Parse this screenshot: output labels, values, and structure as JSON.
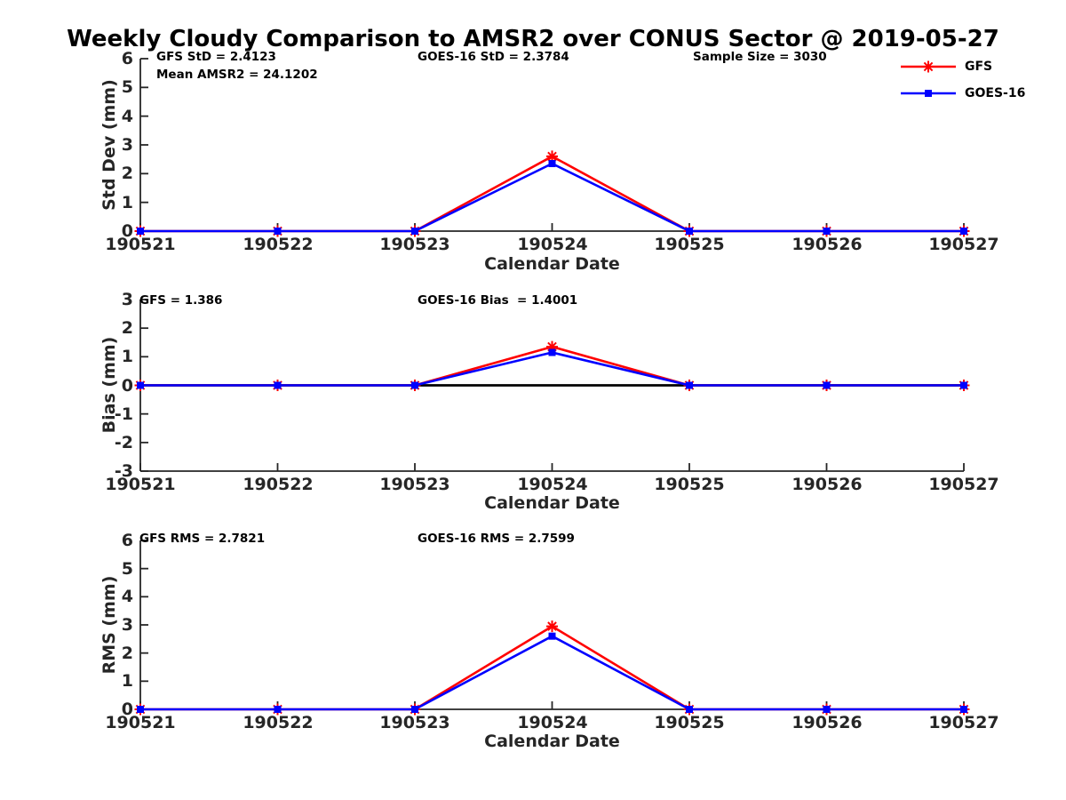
{
  "title": "Weekly Cloudy Comparison to AMSR2 over CONUS Sector @ 2019-05-27",
  "colors": {
    "gfs": "#ff0000",
    "goes16": "#0000ff",
    "axis": "#262626",
    "zero_line": "#000000"
  },
  "legend": {
    "entries": [
      {
        "label": "GFS",
        "color": "#ff0000",
        "marker": "asterisk"
      },
      {
        "label": "GOES-16",
        "color": "#0000ff",
        "marker": "square"
      }
    ]
  },
  "chart_data": [
    {
      "type": "line",
      "panel": "std-dev",
      "ylabel": "Std Dev (mm)",
      "xlabel": "Calendar Date",
      "categories": [
        "190521",
        "190522",
        "190523",
        "190524",
        "190525",
        "190526",
        "190527"
      ],
      "ylim": [
        0,
        6
      ],
      "yticks": [
        0,
        1,
        2,
        3,
        4,
        5,
        6
      ],
      "zero_line": false,
      "grid": false,
      "series": [
        {
          "name": "GFS",
          "color": "#ff0000",
          "marker": "asterisk",
          "values": [
            0,
            0,
            0,
            2.6,
            0,
            0,
            0
          ]
        },
        {
          "name": "GOES-16",
          "color": "#0000ff",
          "marker": "square",
          "values": [
            0,
            0,
            0,
            2.35,
            0,
            0,
            0
          ]
        }
      ],
      "annotations": [
        "GFS StD = 2.4123",
        "Mean AMSR2 = 24.1202",
        "GOES-16 StD = 2.3784",
        "Sample Size = 3030"
      ]
    },
    {
      "type": "line",
      "panel": "bias",
      "ylabel": "Bias (mm)",
      "xlabel": "Calendar Date",
      "categories": [
        "190521",
        "190522",
        "190523",
        "190524",
        "190525",
        "190526",
        "190527"
      ],
      "ylim": [
        -3,
        3
      ],
      "yticks": [
        -3,
        -2,
        -1,
        0,
        1,
        2,
        3
      ],
      "zero_line": true,
      "grid": false,
      "series": [
        {
          "name": "GFS",
          "color": "#ff0000",
          "marker": "asterisk",
          "values": [
            0,
            0,
            0,
            1.35,
            0,
            0,
            0
          ]
        },
        {
          "name": "GOES-16",
          "color": "#0000ff",
          "marker": "square",
          "values": [
            0,
            0,
            0,
            1.15,
            0,
            0,
            0
          ]
        }
      ],
      "annotations": [
        "GFS = 1.386",
        "GOES-16 Bias  = 1.4001"
      ]
    },
    {
      "type": "line",
      "panel": "rms",
      "ylabel": "RMS (mm)",
      "xlabel": "Calendar Date",
      "categories": [
        "190521",
        "190522",
        "190523",
        "190524",
        "190525",
        "190526",
        "190527"
      ],
      "ylim": [
        0,
        6
      ],
      "yticks": [
        0,
        1,
        2,
        3,
        4,
        5,
        6
      ],
      "zero_line": false,
      "grid": false,
      "series": [
        {
          "name": "GFS",
          "color": "#ff0000",
          "marker": "asterisk",
          "values": [
            0,
            0,
            0,
            2.95,
            0,
            0,
            0
          ]
        },
        {
          "name": "GOES-16",
          "color": "#0000ff",
          "marker": "square",
          "values": [
            0,
            0,
            0,
            2.6,
            0,
            0,
            0
          ]
        }
      ],
      "annotations": [
        "GFS RMS = 2.7821",
        "GOES-16 RMS = 2.7599"
      ]
    }
  ]
}
